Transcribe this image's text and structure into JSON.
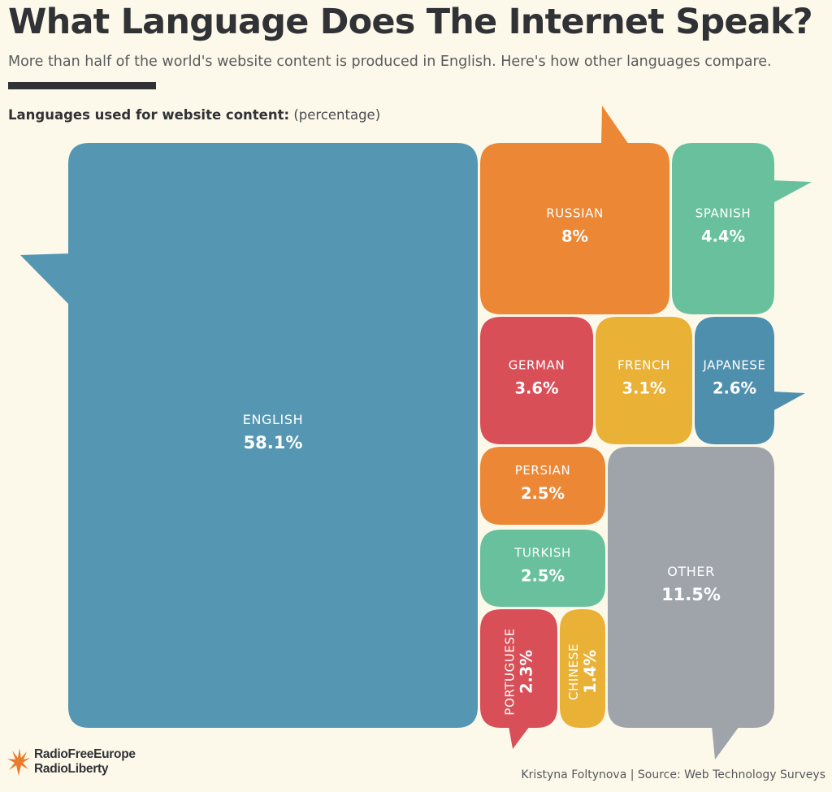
{
  "header": {
    "title": "What Language Does The Internet Speak?",
    "subtitle": "More than half of the world's website content is produced in English. Here's how other languages compare.",
    "section_label": "Languages used for website content:",
    "section_unit": "(percentage)"
  },
  "chart_data": {
    "type": "treemap",
    "title": "What Language Does The Internet Speak?",
    "subtitle": "More than half of the world's website content is produced in English. Here's how other languages compare.",
    "label": "Languages used for website content:",
    "unit": "(percentage)",
    "categories": [
      "ENGLISH",
      "RUSSIAN",
      "SPANISH",
      "GERMAN",
      "FRENCH",
      "JAPANESE",
      "PERSIAN",
      "TURKISH",
      "OTHER",
      "PORTUGUESE",
      "CHINESE"
    ],
    "values": [
      58.1,
      8,
      4.4,
      3.6,
      3.1,
      2.6,
      2.5,
      2.5,
      11.5,
      2.3,
      1.4
    ],
    "value_labels": [
      "58.1%",
      "8%",
      "4.4%",
      "3.6%",
      "3.1%",
      "2.6%",
      "2.5%",
      "2.5%",
      "11.5%",
      "2.3%",
      "1.4%"
    ],
    "colors": [
      "#5597b2",
      "#ec8736",
      "#68c19c",
      "#d94f58",
      "#e9b136",
      "#4f8fae",
      "#ec8736",
      "#68c19c",
      "#9fa4ab",
      "#d94f58",
      "#e9b136"
    ]
  },
  "footer": {
    "logo_line1": "RadioFreeEurope",
    "logo_line2": "RadioLiberty",
    "logo_icon": "rferl-flame-icon",
    "credit": "Kristyna Foltynova | Source: Web Technology Surveys"
  }
}
